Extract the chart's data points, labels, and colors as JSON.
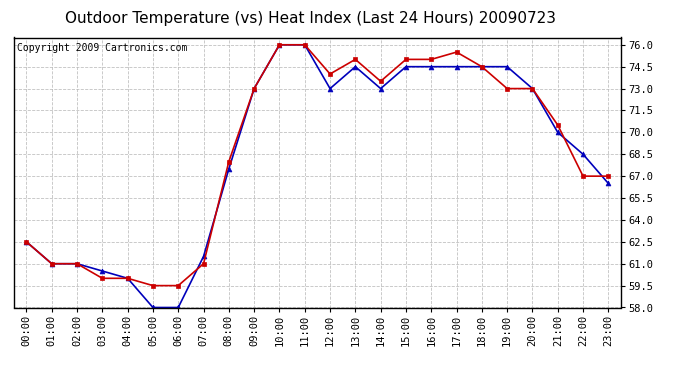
{
  "title": "Outdoor Temperature (vs) Heat Index (Last 24 Hours) 20090723",
  "copyright": "Copyright 2009 Cartronics.com",
  "x_labels": [
    "00:00",
    "01:00",
    "02:00",
    "03:00",
    "04:00",
    "05:00",
    "06:00",
    "07:00",
    "08:00",
    "09:00",
    "10:00",
    "11:00",
    "12:00",
    "13:00",
    "14:00",
    "15:00",
    "16:00",
    "17:00",
    "18:00",
    "19:00",
    "20:00",
    "21:00",
    "22:00",
    "23:00"
  ],
  "temp_outdoor": [
    62.5,
    61.0,
    61.0,
    60.5,
    60.0,
    58.0,
    58.0,
    61.5,
    67.5,
    73.0,
    76.0,
    76.0,
    73.0,
    74.5,
    73.0,
    74.5,
    74.5,
    74.5,
    74.5,
    74.5,
    73.0,
    70.0,
    68.5,
    66.5
  ],
  "heat_index": [
    62.5,
    61.0,
    61.0,
    60.0,
    60.0,
    59.5,
    59.5,
    61.0,
    68.0,
    73.0,
    76.0,
    76.0,
    74.0,
    75.0,
    73.5,
    75.0,
    75.0,
    75.5,
    74.5,
    73.0,
    73.0,
    70.5,
    67.0,
    67.0
  ],
  "outdoor_color": "#0000bb",
  "heat_index_color": "#cc0000",
  "ylim_min": 58.0,
  "ylim_max": 76.5,
  "ytick_start": 58.0,
  "ytick_end": 76.0,
  "ytick_interval": 1.5,
  "background_color": "#ffffff",
  "plot_bg_color": "#ffffff",
  "grid_color": "#bbbbbb",
  "title_fontsize": 11,
  "copyright_fontsize": 7,
  "tick_fontsize": 7.5
}
